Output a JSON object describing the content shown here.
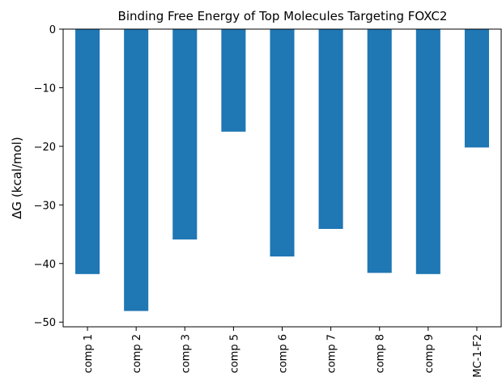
{
  "chart_data": {
    "type": "bar",
    "title": "Binding Free Energy of Top Molecules Targeting FOXC2",
    "ylabel": "ΔG (kcal/mol)",
    "categories": [
      "comp 1",
      "comp 2",
      "comp 3",
      "comp 5",
      "comp 6",
      "comp 7",
      "comp 8",
      "comp 9",
      "MC-1-F2"
    ],
    "values": [
      -41.8,
      -48.1,
      -35.9,
      -17.5,
      -38.8,
      -34.1,
      -41.6,
      -41.8,
      -20.2
    ],
    "color": "#1f77b4",
    "ylim": [
      -50.8,
      0
    ],
    "yticks": [
      0,
      {
        "value": -10,
        "label": "−10"
      },
      {
        "value": -20,
        "label": "−20"
      },
      {
        "value": -30,
        "label": "−30"
      },
      {
        "value": -40,
        "label": "−40"
      },
      {
        "value": -50,
        "label": "−50"
      }
    ],
    "grid": false
  }
}
